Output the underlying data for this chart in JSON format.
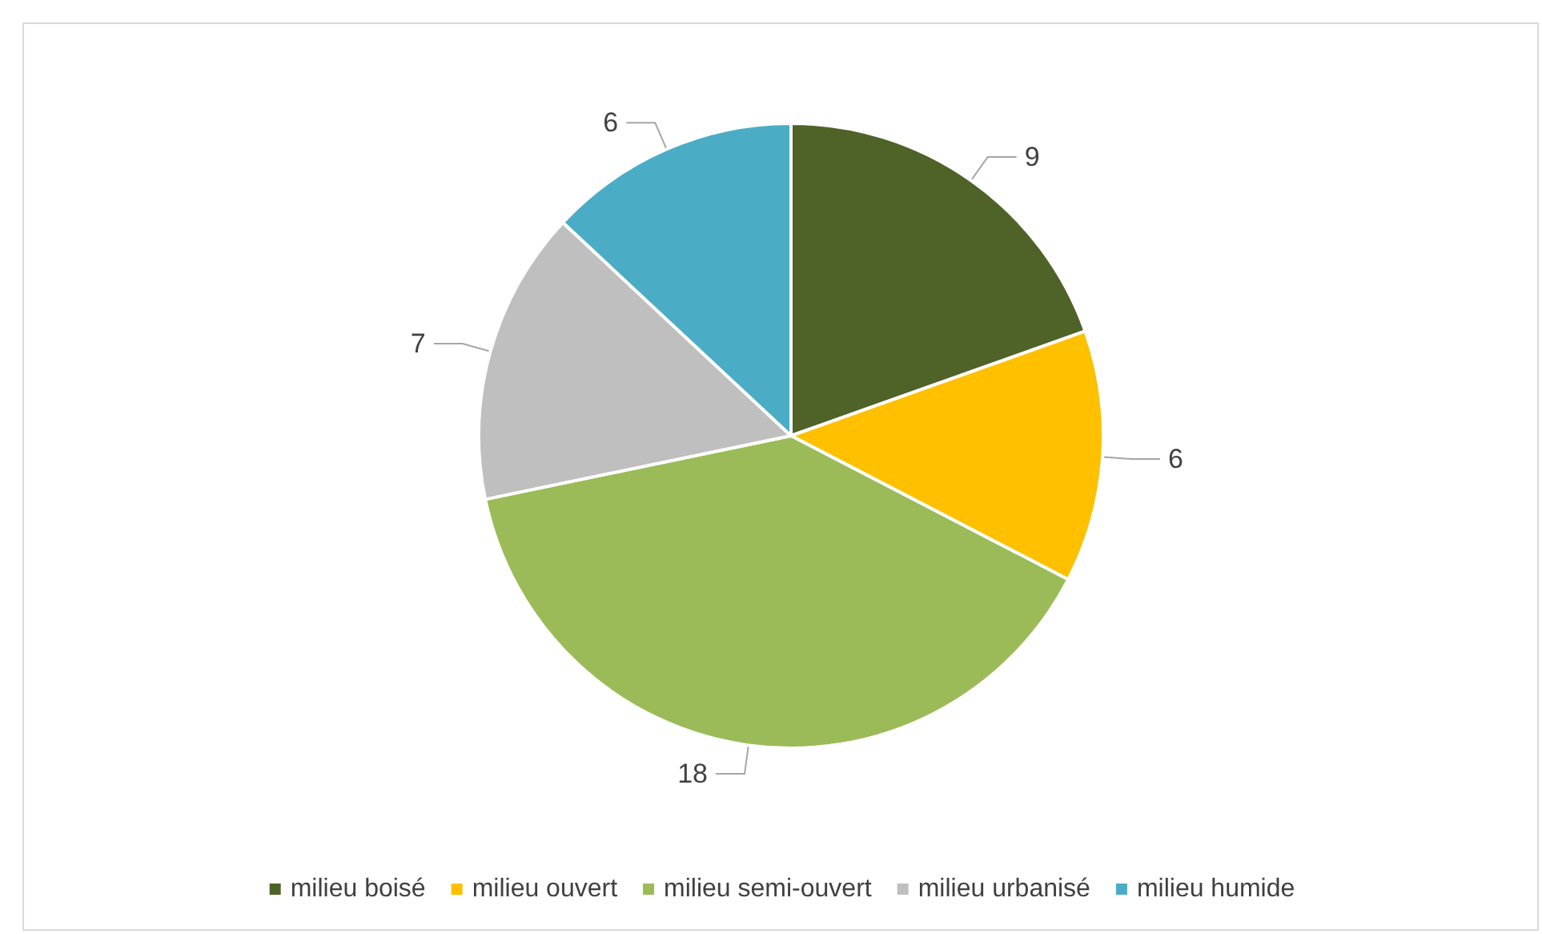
{
  "chart_data": {
    "type": "pie",
    "categories": [
      "milieu boisé",
      "milieu ouvert",
      "milieu semi-ouvert",
      "milieu urbanisé",
      "milieu humide"
    ],
    "values": [
      9,
      6,
      18,
      7,
      6
    ],
    "colors": [
      "#4f6228",
      "#ffc000",
      "#9bbb59",
      "#bfbfbf",
      "#4bacc6"
    ],
    "data_labels": true,
    "legend": "bottom"
  }
}
